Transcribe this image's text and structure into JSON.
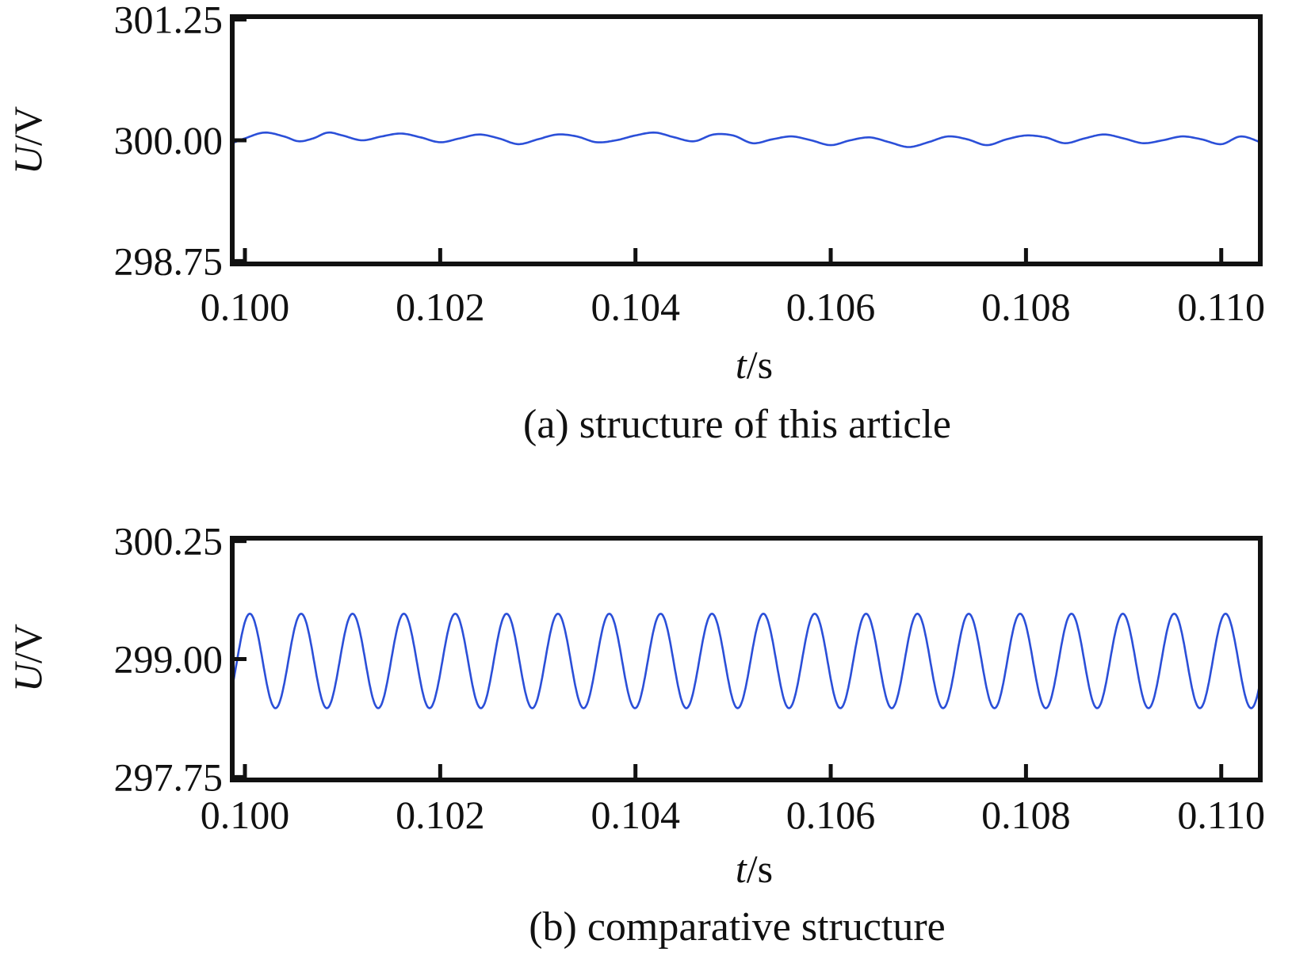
{
  "chart_data": [
    {
      "type": "line",
      "caption": "(a) structure of this article",
      "xlabel_italic": "t",
      "xlabel_unit": "/s",
      "ylabel_italic": "U",
      "ylabel_unit": "/V",
      "xlim": [
        0.09987,
        0.1104
      ],
      "ylim": [
        298.72,
        301.28
      ],
      "xticks": [
        0.1,
        0.102,
        0.104,
        0.106,
        0.108,
        0.11
      ],
      "xtick_labels": [
        "0.100",
        "0.102",
        "0.104",
        "0.106",
        "0.108",
        "0.110"
      ],
      "yticks": [
        298.75,
        300.0,
        301.25
      ],
      "ytick_labels": [
        "298.75",
        "300.00",
        "301.25"
      ],
      "series": [
        {
          "color": "#2b4fd8",
          "x": [
            0.09987,
            0.1,
            0.1002,
            0.1004,
            0.10055,
            0.1007,
            0.10085,
            0.101,
            0.1012,
            0.1014,
            0.1016,
            0.1018,
            0.102,
            0.1022,
            0.1024,
            0.1026,
            0.1028,
            0.103,
            0.1032,
            0.1034,
            0.1036,
            0.1038,
            0.104,
            0.1042,
            0.1044,
            0.1046,
            0.1048,
            0.105,
            0.1052,
            0.1054,
            0.1056,
            0.1058,
            0.106,
            0.1062,
            0.1064,
            0.1066,
            0.1068,
            0.107,
            0.1072,
            0.1074,
            0.1076,
            0.1078,
            0.108,
            0.1082,
            0.1084,
            0.1086,
            0.1088,
            0.109,
            0.1092,
            0.1094,
            0.1096,
            0.1098,
            0.11,
            0.1102,
            0.1104
          ],
          "y": [
            299.97,
            300.02,
            300.08,
            300.04,
            299.99,
            300.02,
            300.08,
            300.05,
            300.0,
            300.04,
            300.07,
            300.03,
            299.98,
            300.02,
            300.06,
            300.02,
            299.96,
            300.01,
            300.06,
            300.04,
            299.98,
            300.0,
            300.05,
            300.08,
            300.03,
            299.99,
            300.06,
            300.05,
            299.97,
            300.01,
            300.04,
            300.0,
            299.95,
            300.0,
            300.03,
            299.98,
            299.93,
            299.98,
            300.04,
            300.01,
            299.95,
            300.01,
            300.05,
            300.03,
            299.97,
            300.02,
            300.06,
            300.02,
            299.97,
            300.0,
            300.04,
            300.01,
            299.96,
            300.04,
            299.98
          ]
        }
      ]
    },
    {
      "type": "line",
      "caption": "(b) comparative structure",
      "xlabel_italic": "t",
      "xlabel_unit": "/s",
      "ylabel_italic": "U",
      "ylabel_unit": "/V",
      "xlim": [
        0.09987,
        0.1104
      ],
      "ylim": [
        297.72,
        300.28
      ],
      "xticks": [
        0.1,
        0.102,
        0.104,
        0.106,
        0.108,
        0.11
      ],
      "xtick_labels": [
        "0.100",
        "0.102",
        "0.104",
        "0.106",
        "0.108",
        "0.110"
      ],
      "yticks": [
        297.75,
        299.0,
        300.25
      ],
      "ytick_labels": [
        "297.75",
        "299.00",
        "300.25"
      ],
      "series": [
        {
          "color": "#2b4fd8",
          "signal": "sinusoid",
          "mean": 298.98,
          "amplitude": 0.5,
          "period": 0.000526,
          "peak_time": 0.10005,
          "x_range": [
            0.09987,
            0.1104
          ]
        }
      ]
    }
  ]
}
